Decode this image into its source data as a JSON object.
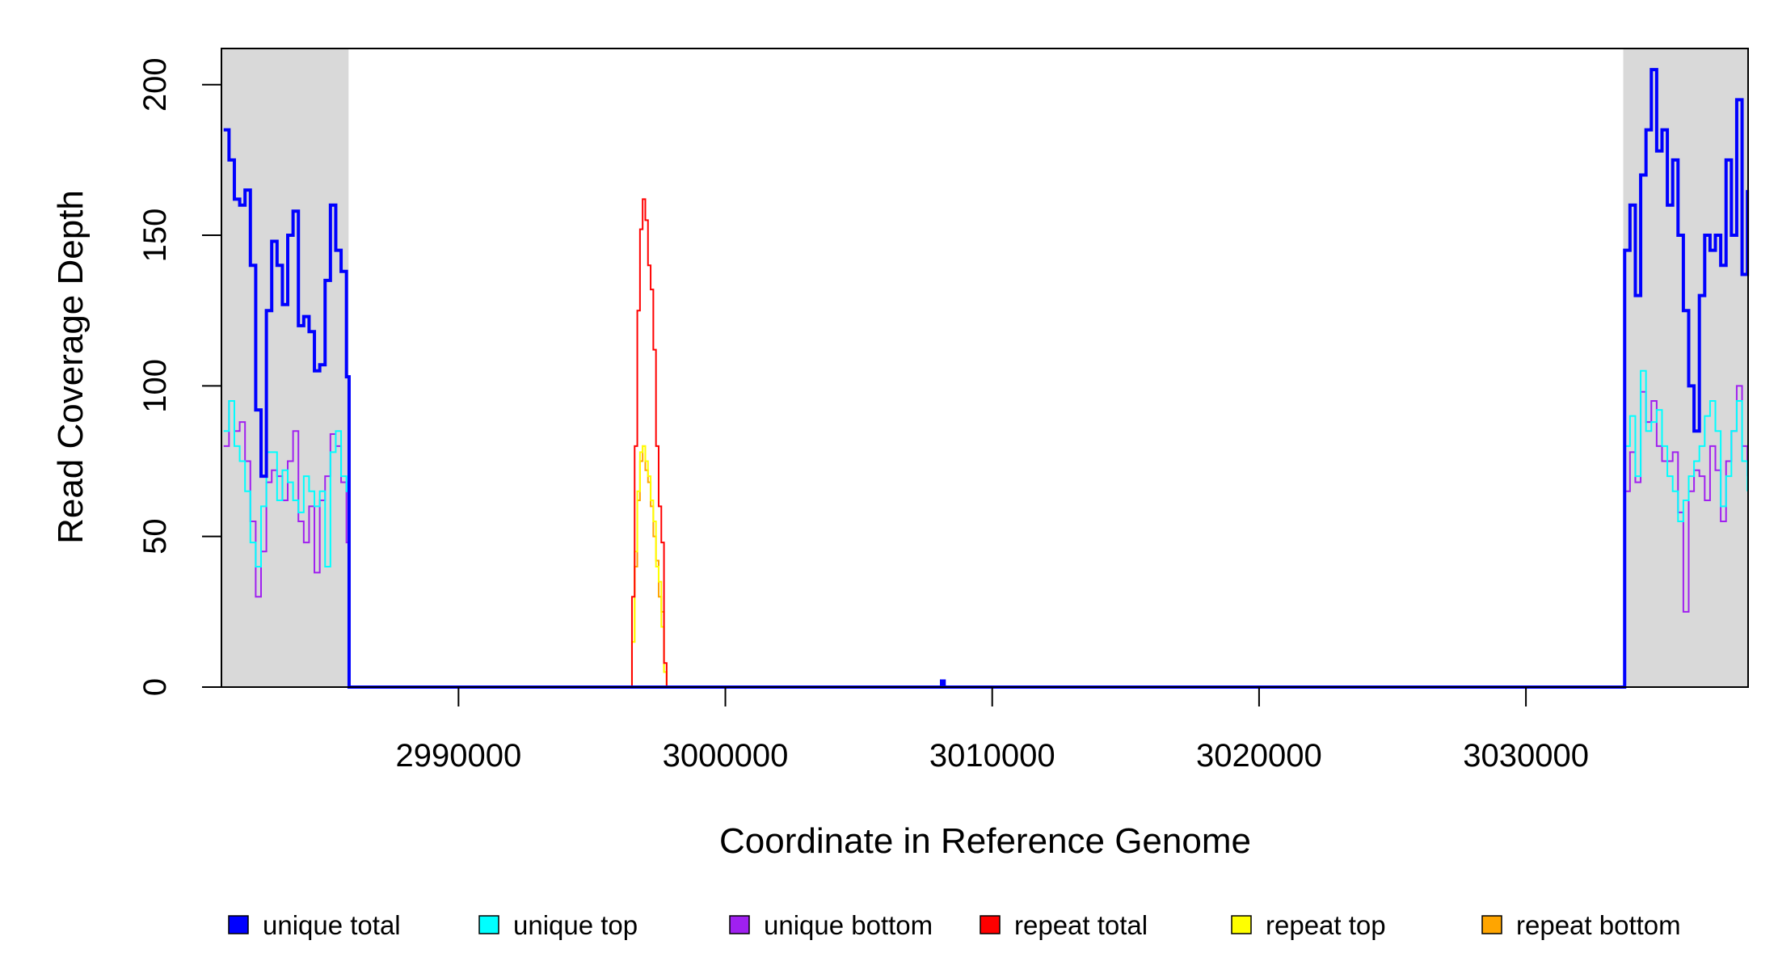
{
  "chart_data": {
    "type": "line",
    "xlabel": "Coordinate in Reference Genome",
    "ylabel": "Read Coverage Depth",
    "xlim": [
      2981116,
      3038326
    ],
    "ylim": [
      0,
      212
    ],
    "xticks": [
      2990000,
      3000000,
      3010000,
      3020000,
      3030000
    ],
    "yticks": [
      0,
      50,
      100,
      150,
      200
    ],
    "shaded_regions": [
      [
        2981116,
        2985880
      ],
      [
        3033648,
        3038326
      ]
    ],
    "shade_color": "#d9d9d9",
    "step": true,
    "legend": "bottom",
    "x": [
      2981200,
      2981400,
      2981600,
      2981800,
      2982000,
      2982200,
      2982400,
      2982600,
      2982800,
      2983000,
      2983200,
      2983400,
      2983600,
      2983800,
      2984000,
      2984200,
      2984400,
      2984600,
      2984800,
      2985000,
      2985200,
      2985400,
      2985600,
      2985800,
      2985900,
      2996400,
      2996500,
      2996600,
      2996700,
      2996800,
      2996900,
      2997000,
      2997100,
      2997200,
      2997300,
      2997400,
      2997500,
      2997600,
      2997700,
      2997800,
      2997900,
      3008000,
      3008100,
      3008200,
      3033600,
      3033700,
      3033900,
      3034100,
      3034300,
      3034500,
      3034700,
      3034900,
      3035100,
      3035300,
      3035500,
      3035700,
      3035900,
      3036100,
      3036300,
      3036500,
      3036700,
      3036900,
      3037100,
      3037300,
      3037500,
      3037700,
      3037900,
      3038100,
      3038300
    ],
    "series": [
      {
        "name": "unique total",
        "color": "#0000ff",
        "values": [
          185,
          175,
          162,
          160,
          165,
          140,
          92,
          70,
          125,
          148,
          140,
          127,
          150,
          158,
          120,
          123,
          118,
          105,
          107,
          135,
          160,
          145,
          138,
          103,
          0,
          0,
          0,
          0,
          0,
          0,
          0,
          0,
          0,
          0,
          0,
          0,
          0,
          0,
          0,
          0,
          0,
          0,
          2,
          0,
          0,
          145,
          160,
          130,
          170,
          185,
          205,
          178,
          185,
          160,
          175,
          150,
          125,
          100,
          85,
          130,
          150,
          145,
          150,
          140,
          175,
          150,
          195,
          137,
          165
        ]
      },
      {
        "name": "unique top",
        "color": "#00ffff",
        "values": [
          85,
          95,
          80,
          75,
          65,
          48,
          40,
          60,
          78,
          78,
          62,
          72,
          68,
          62,
          58,
          70,
          65,
          60,
          65,
          40,
          78,
          85,
          70,
          65,
          0,
          0,
          0,
          0,
          0,
          0,
          0,
          0,
          0,
          0,
          0,
          0,
          0,
          0,
          0,
          0,
          0,
          0,
          1,
          0,
          0,
          80,
          90,
          70,
          105,
          85,
          88,
          92,
          80,
          70,
          65,
          55,
          62,
          70,
          75,
          80,
          90,
          95,
          85,
          60,
          70,
          85,
          95,
          75,
          65
        ]
      },
      {
        "name": "unique bottom",
        "color": "#a020f0",
        "values": [
          80,
          95,
          85,
          88,
          75,
          55,
          30,
          45,
          68,
          72,
          70,
          62,
          75,
          85,
          55,
          48,
          60,
          38,
          62,
          70,
          84,
          80,
          68,
          48,
          0,
          0,
          0,
          0,
          0,
          0,
          0,
          0,
          0,
          0,
          0,
          0,
          0,
          0,
          0,
          0,
          0,
          0,
          1,
          0,
          0,
          65,
          78,
          68,
          98,
          88,
          95,
          80,
          75,
          75,
          78,
          58,
          25,
          65,
          72,
          70,
          62,
          80,
          72,
          55,
          75,
          85,
          100,
          80,
          70
        ]
      },
      {
        "name": "repeat total",
        "color": "#ff0000",
        "values": [
          0,
          0,
          0,
          0,
          0,
          0,
          0,
          0,
          0,
          0,
          0,
          0,
          0,
          0,
          0,
          0,
          0,
          0,
          0,
          0,
          0,
          0,
          0,
          0,
          0,
          0,
          30,
          80,
          125,
          152,
          162,
          155,
          140,
          132,
          112,
          80,
          60,
          48,
          8,
          0,
          0,
          0,
          0,
          0,
          0,
          0,
          0,
          0,
          0,
          0,
          0,
          0,
          0,
          0,
          0,
          0,
          0,
          0,
          0,
          0,
          0,
          0,
          0,
          0,
          0,
          0,
          0,
          0,
          0
        ]
      },
      {
        "name": "repeat top",
        "color": "#ffff00",
        "values": [
          0,
          0,
          0,
          0,
          0,
          0,
          0,
          0,
          0,
          0,
          0,
          0,
          0,
          0,
          0,
          0,
          0,
          0,
          0,
          0,
          0,
          0,
          0,
          0,
          0,
          0,
          15,
          45,
          65,
          78,
          80,
          75,
          70,
          62,
          55,
          40,
          35,
          20,
          5,
          0,
          0,
          0,
          0,
          0,
          0,
          0,
          0,
          0,
          0,
          0,
          0,
          0,
          0,
          0,
          0,
          0,
          0,
          0,
          0,
          0,
          0,
          0,
          0,
          0,
          0,
          0,
          0,
          0,
          0
        ]
      },
      {
        "name": "repeat bottom",
        "color": "#ffa500",
        "values": [
          0,
          0,
          0,
          0,
          0,
          0,
          0,
          0,
          0,
          0,
          0,
          0,
          0,
          0,
          0,
          0,
          0,
          0,
          0,
          0,
          0,
          0,
          0,
          0,
          0,
          0,
          15,
          40,
          62,
          75,
          80,
          72,
          68,
          60,
          50,
          42,
          30,
          25,
          5,
          0,
          0,
          0,
          0,
          0,
          0,
          0,
          0,
          0,
          0,
          0,
          0,
          0,
          0,
          0,
          0,
          0,
          0,
          0,
          0,
          0,
          0,
          0,
          0,
          0,
          0,
          0,
          0,
          0,
          0
        ]
      }
    ]
  }
}
